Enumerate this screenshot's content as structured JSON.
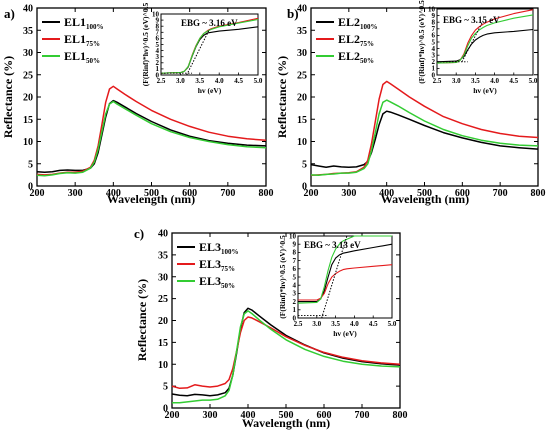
{
  "chart_data": [
    {
      "type": "line",
      "panel_label": "a)",
      "xlabel": "Wavelength (nm)",
      "ylabel": "Reflectance (%)",
      "xlim": [
        200,
        800
      ],
      "ylim": [
        0,
        40
      ],
      "xticks": [
        200,
        300,
        400,
        500,
        600,
        700,
        800
      ],
      "yticks": [
        0,
        5,
        10,
        15,
        20,
        25,
        30,
        35,
        40
      ],
      "legend_position": "top-left",
      "series": [
        {
          "name": "EL1",
          "sub": "100%",
          "color": "#000000",
          "x": [
            200,
            220,
            240,
            260,
            280,
            300,
            320,
            340,
            350,
            360,
            370,
            380,
            390,
            400,
            410,
            430,
            460,
            500,
            550,
            600,
            650,
            700,
            750,
            800
          ],
          "y": [
            3.2,
            3.1,
            3.2,
            3.5,
            3.6,
            3.5,
            3.5,
            4.0,
            5.0,
            7.5,
            11.5,
            15.5,
            18.5,
            19.2,
            18.8,
            17.8,
            16.3,
            14.5,
            12.6,
            11.2,
            10.2,
            9.6,
            9.2,
            9.0
          ]
        },
        {
          "name": "EL1",
          "sub": "75%",
          "color": "#e41a1c",
          "x": [
            200,
            220,
            240,
            260,
            280,
            300,
            320,
            340,
            350,
            360,
            370,
            380,
            390,
            400,
            410,
            430,
            460,
            500,
            550,
            600,
            650,
            700,
            750,
            800
          ],
          "y": [
            2.6,
            2.5,
            2.6,
            2.9,
            3.1,
            3.1,
            3.3,
            4.2,
            5.8,
            9.0,
            13.8,
            18.8,
            21.8,
            22.4,
            21.8,
            20.6,
            19.0,
            17.0,
            15.0,
            13.4,
            12.1,
            11.2,
            10.6,
            10.3
          ]
        },
        {
          "name": "EL1",
          "sub": "50%",
          "color": "#33cc33",
          "x": [
            200,
            220,
            240,
            260,
            280,
            300,
            320,
            340,
            350,
            360,
            370,
            380,
            390,
            400,
            410,
            430,
            460,
            500,
            550,
            600,
            650,
            700,
            750,
            800
          ],
          "y": [
            2.4,
            2.3,
            2.5,
            2.8,
            3.0,
            2.9,
            3.1,
            4.0,
            5.4,
            8.2,
            12.2,
            16.2,
            18.4,
            19.0,
            18.4,
            17.4,
            15.9,
            14.0,
            12.2,
            10.9,
            10.0,
            9.3,
            8.8,
            8.6
          ]
        }
      ],
      "inset": {
        "xlabel": "hv (eV)",
        "ylabel": "(F(Rinf)*hv)^0.5 (eV)^0.5",
        "annotation": "EBG ~ 3.16 eV",
        "xlim": [
          2.5,
          5.0
        ],
        "ylim": [
          0,
          10
        ],
        "xticks": [
          "2.5",
          "3.0",
          "3.5",
          "4.0",
          "4.5",
          "5.0"
        ],
        "yticks": [
          "0",
          "1",
          "2",
          "3",
          "4",
          "5",
          "6",
          "7",
          "8",
          "9",
          "10"
        ],
        "series": [
          {
            "color": "#000000",
            "x": [
              2.5,
              3.0,
              3.1,
              3.2,
              3.3,
              3.4,
              3.5,
              3.6,
              3.7,
              3.8,
              4.0,
              4.5,
              5.0
            ],
            "y": [
              0.3,
              0.4,
              0.6,
              1.3,
              3.0,
              4.6,
              5.8,
              6.5,
              6.9,
              7.0,
              7.2,
              7.5,
              7.9
            ]
          },
          {
            "color": "#e41a1c",
            "x": [
              2.5,
              3.0,
              3.1,
              3.2,
              3.3,
              3.4,
              3.5,
              3.6,
              3.7,
              3.8,
              4.0,
              4.5,
              5.0
            ],
            "y": [
              0.3,
              0.4,
              0.6,
              1.4,
              3.2,
              4.8,
              6.0,
              6.8,
              7.3,
              7.6,
              8.0,
              8.6,
              9.3
            ]
          },
          {
            "color": "#33cc33",
            "x": [
              2.5,
              3.0,
              3.1,
              3.2,
              3.3,
              3.4,
              3.5,
              3.6,
              3.7,
              3.8,
              4.0,
              4.5,
              5.0
            ],
            "y": [
              0.3,
              0.4,
              0.6,
              1.4,
              3.1,
              4.7,
              6.0,
              6.8,
              7.2,
              7.5,
              7.9,
              8.5,
              9.1
            ]
          }
        ],
        "tangent": {
          "x": [
            3.16,
            3.75
          ],
          "y": [
            0,
            7.5
          ]
        }
      }
    },
    {
      "type": "line",
      "panel_label": "b)",
      "xlabel": "Wavelength (nm)",
      "ylabel": "Reflectance (%)",
      "xlim": [
        200,
        800
      ],
      "ylim": [
        0,
        40
      ],
      "xticks": [
        200,
        300,
        400,
        500,
        600,
        700,
        800
      ],
      "yticks": [
        0,
        5,
        10,
        15,
        20,
        25,
        30,
        35,
        40
      ],
      "legend_position": "top-left",
      "series": [
        {
          "name": "EL2",
          "sub": "100%",
          "color": "#000000",
          "x": [
            200,
            220,
            240,
            260,
            280,
            300,
            320,
            340,
            350,
            360,
            370,
            380,
            390,
            400,
            410,
            430,
            460,
            500,
            550,
            600,
            650,
            700,
            750,
            800
          ],
          "y": [
            4.8,
            4.5,
            4.2,
            4.5,
            4.3,
            4.2,
            4.3,
            4.8,
            5.5,
            7.5,
            10.5,
            13.8,
            16.2,
            16.8,
            16.6,
            16.0,
            15.0,
            13.6,
            12.0,
            10.8,
            9.8,
            9.0,
            8.6,
            8.3
          ]
        },
        {
          "name": "EL2",
          "sub": "75%",
          "color": "#e41a1c",
          "x": [
            200,
            220,
            240,
            260,
            280,
            300,
            320,
            340,
            350,
            360,
            370,
            380,
            390,
            400,
            410,
            430,
            460,
            500,
            550,
            600,
            650,
            700,
            750,
            800
          ],
          "y": [
            2.4,
            2.5,
            2.6,
            2.8,
            2.9,
            3.0,
            3.2,
            4.2,
            5.8,
            9.5,
            14.5,
            19.5,
            22.8,
            23.5,
            23.0,
            21.8,
            20.0,
            17.9,
            15.6,
            14.0,
            12.7,
            11.8,
            11.2,
            10.9
          ]
        },
        {
          "name": "EL2",
          "sub": "50%",
          "color": "#33cc33",
          "x": [
            200,
            220,
            240,
            260,
            280,
            300,
            320,
            340,
            350,
            360,
            370,
            380,
            390,
            400,
            410,
            430,
            460,
            500,
            550,
            600,
            650,
            700,
            750,
            800
          ],
          "y": [
            2.5,
            2.4,
            2.6,
            2.7,
            2.9,
            2.9,
            3.1,
            3.9,
            5.0,
            8.0,
            12.0,
            16.2,
            18.8,
            19.3,
            18.9,
            18.0,
            16.5,
            14.6,
            12.7,
            11.3,
            10.3,
            9.6,
            9.2,
            9.0
          ]
        }
      ],
      "inset": {
        "xlabel": "hv (eV)",
        "ylabel": "(F(Rinf)*hv)^0.5 (eV)^0.5",
        "annotation": "EBG ~ 3.15 eV",
        "xlim": [
          2.5,
          5.0
        ],
        "ylim": [
          0,
          10
        ],
        "xticks": [
          "2.5",
          "3.0",
          "3.5",
          "4.0",
          "4.5",
          "5.0"
        ],
        "yticks": [
          "0",
          "1",
          "2",
          "3",
          "4",
          "5",
          "6",
          "7",
          "8",
          "9",
          "10"
        ],
        "series": [
          {
            "color": "#000000",
            "x": [
              2.5,
              3.0,
              3.1,
              3.2,
              3.3,
              3.4,
              3.5,
              3.6,
              3.7,
              3.8,
              4.0,
              4.5,
              5.0
            ],
            "y": [
              2.0,
              2.1,
              2.3,
              2.8,
              3.8,
              4.7,
              5.3,
              5.7,
              6.0,
              6.2,
              6.4,
              6.6,
              6.9
            ]
          },
          {
            "color": "#e41a1c",
            "x": [
              2.5,
              3.0,
              3.1,
              3.2,
              3.3,
              3.4,
              3.5,
              3.6,
              3.7,
              3.8,
              4.0,
              4.5,
              5.0
            ],
            "y": [
              1.8,
              1.9,
              2.2,
              3.2,
              4.8,
              6.0,
              6.8,
              7.3,
              7.7,
              8.0,
              8.5,
              9.3,
              9.9
            ]
          },
          {
            "color": "#33cc33",
            "x": [
              2.5,
              3.0,
              3.1,
              3.2,
              3.3,
              3.4,
              3.5,
              3.6,
              3.7,
              3.8,
              4.0,
              4.5,
              5.0
            ],
            "y": [
              1.8,
              1.9,
              2.2,
              3.0,
              4.4,
              5.6,
              6.3,
              6.8,
              7.2,
              7.5,
              7.9,
              8.6,
              9.1
            ]
          }
        ],
        "tangent": {
          "x": [
            3.15,
            3.7
          ],
          "y": [
            2.0,
            8.2
          ]
        }
      }
    },
    {
      "type": "line",
      "panel_label": "c)",
      "xlabel": "Wavelength (nm)",
      "ylabel": "Reflectance (%)",
      "xlim": [
        200,
        800
      ],
      "ylim": [
        0,
        40
      ],
      "xticks": [
        200,
        300,
        400,
        500,
        600,
        700,
        800
      ],
      "yticks": [
        0,
        5,
        10,
        15,
        20,
        25,
        30,
        35,
        40
      ],
      "legend_position": "top-left",
      "series": [
        {
          "name": "EL3",
          "sub": "100%",
          "color": "#000000",
          "x": [
            200,
            220,
            240,
            260,
            280,
            300,
            320,
            340,
            350,
            360,
            370,
            380,
            390,
            400,
            410,
            430,
            460,
            500,
            550,
            600,
            650,
            700,
            750,
            800
          ],
          "y": [
            3.2,
            2.9,
            2.8,
            3.1,
            3.0,
            2.8,
            3.0,
            3.5,
            4.5,
            7.5,
            12.5,
            18.0,
            21.8,
            22.8,
            22.4,
            21.0,
            19.0,
            16.6,
            14.4,
            12.6,
            11.4,
            10.6,
            10.1,
            9.8
          ]
        },
        {
          "name": "EL3",
          "sub": "75%",
          "color": "#e41a1c",
          "x": [
            200,
            220,
            240,
            260,
            280,
            300,
            320,
            340,
            350,
            360,
            370,
            380,
            390,
            400,
            410,
            430,
            460,
            500,
            550,
            600,
            650,
            700,
            750,
            800
          ],
          "y": [
            5.0,
            4.5,
            4.6,
            5.3,
            5.0,
            4.8,
            5.0,
            5.6,
            6.5,
            9.0,
            13.0,
            17.2,
            20.0,
            20.8,
            20.6,
            19.7,
            18.3,
            16.3,
            14.3,
            12.7,
            11.6,
            10.8,
            10.3,
            10.0
          ]
        },
        {
          "name": "EL3",
          "sub": "50%",
          "color": "#33cc33",
          "x": [
            200,
            220,
            240,
            260,
            280,
            300,
            320,
            340,
            350,
            360,
            370,
            380,
            390,
            400,
            410,
            430,
            460,
            500,
            550,
            600,
            650,
            700,
            750,
            800
          ],
          "y": [
            1.2,
            1.2,
            1.4,
            1.6,
            1.8,
            1.8,
            2.0,
            2.8,
            4.0,
            7.5,
            13.0,
            18.5,
            21.5,
            22.2,
            21.6,
            20.1,
            18.0,
            15.6,
            13.4,
            11.8,
            10.7,
            10.0,
            9.6,
            9.4
          ]
        }
      ],
      "inset": {
        "xlabel": "hv (eV)",
        "ylabel": "(F(Rinf)*hv)^0.5 (eV)^0.5",
        "annotation": "EBG ~ 3.13 eV",
        "xlim": [
          2.5,
          5.0
        ],
        "ylim": [
          0,
          10
        ],
        "xticks": [
          "2.5",
          "3.0",
          "3.5",
          "4.0",
          "4.5",
          "5.0"
        ],
        "yticks": [
          "0",
          "1",
          "2",
          "3",
          "4",
          "5",
          "6",
          "7",
          "8",
          "9",
          "10"
        ],
        "series": [
          {
            "color": "#000000",
            "x": [
              2.5,
              3.0,
              3.1,
              3.2,
              3.3,
              3.4,
              3.5,
              3.6,
              3.7,
              3.8,
              4.0,
              4.5,
              5.0
            ],
            "y": [
              2.0,
              2.0,
              2.3,
              3.3,
              5.0,
              6.5,
              7.3,
              7.7,
              7.9,
              8.0,
              8.2,
              8.6,
              9.0
            ]
          },
          {
            "color": "#e41a1c",
            "x": [
              2.5,
              3.0,
              3.1,
              3.2,
              3.3,
              3.4,
              3.5,
              3.6,
              3.7,
              3.8,
              4.0,
              4.5,
              5.0
            ],
            "y": [
              2.2,
              2.2,
              2.4,
              3.0,
              4.2,
              5.0,
              5.4,
              5.7,
              5.9,
              6.0,
              6.1,
              6.3,
              6.5
            ]
          },
          {
            "color": "#33cc33",
            "x": [
              2.5,
              3.0,
              3.1,
              3.2,
              3.3,
              3.4,
              3.5,
              3.6,
              3.7,
              3.8,
              4.0,
              4.5,
              5.0
            ],
            "y": [
              1.8,
              1.9,
              2.3,
              3.8,
              5.8,
              7.4,
              8.4,
              9.0,
              9.4,
              9.6,
              10.0,
              10.2,
              10.3
            ]
          }
        ],
        "tangent": {
          "x": [
            3.13,
            3.8
          ],
          "y": [
            0,
            10
          ]
        }
      }
    }
  ]
}
